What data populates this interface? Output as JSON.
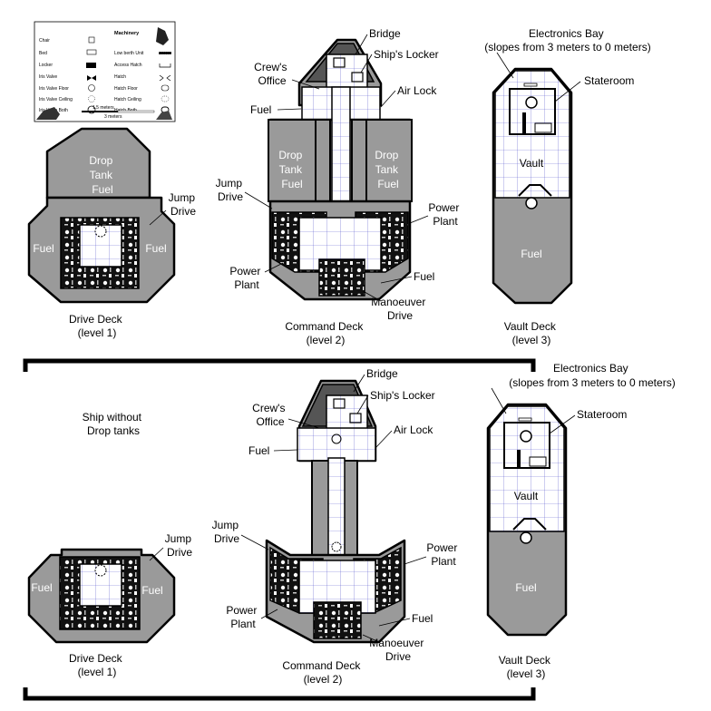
{
  "legend": {
    "left_items": [
      "Chair",
      "Bed",
      "Locker",
      "Iris Valve",
      "Iris Valve Floor",
      "Iris Valve Ceiling",
      "Iris Valve Both"
    ],
    "right_title": "Machinery",
    "right_items": [
      "Low berth Unit",
      "Access Hatch",
      "Hatch",
      "Hatch Floor",
      "Hatch Ceiling",
      "Hatch Both"
    ],
    "scale_top": "1.5 meters",
    "scale_bottom": "3 meters"
  },
  "top": {
    "drive_deck": {
      "drop_tank": [
        "Drop",
        "Tank",
        "Fuel"
      ],
      "fuel_left": "Fuel",
      "fuel_right": "Fuel",
      "jump_drive": [
        "Jump",
        "Drive"
      ],
      "caption": [
        "Drive Deck",
        "(level 1)"
      ]
    },
    "command_deck": {
      "bridge": "Bridge",
      "ships_locker": "Ship's Locker",
      "crews_office": [
        "Crew's",
        "Office"
      ],
      "air_lock": "Air Lock",
      "fuel_upper": "Fuel",
      "drop_tank_left": [
        "Drop",
        "Tank",
        "Fuel"
      ],
      "drop_tank_right": [
        "Drop",
        "Tank",
        "Fuel"
      ],
      "jump_drive": [
        "Jump",
        "Drive"
      ],
      "power_plant_right": [
        "Power",
        "Plant"
      ],
      "power_plant_left": [
        "Power",
        "Plant"
      ],
      "fuel_lower": "Fuel",
      "manoeuver_drive": [
        "Manoeuver",
        "Drive"
      ],
      "caption": [
        "Command Deck",
        "(level 2)"
      ]
    },
    "vault_deck": {
      "electronics_bay": [
        "Electronics Bay",
        "(slopes from 3 meters to 0 meters)"
      ],
      "stateroom": "Stateroom",
      "vault": "Vault",
      "fuel": "Fuel",
      "caption": [
        "Vault Deck",
        "(level 3)"
      ]
    }
  },
  "bottom": {
    "ship_note": [
      "Ship without",
      "Drop tanks"
    ],
    "drive_deck": {
      "fuel_left": "Fuel",
      "fuel_right": "Fuel",
      "jump_drive": [
        "Jump",
        "Drive"
      ],
      "caption": [
        "Drive Deck",
        "(level 1)"
      ]
    },
    "command_deck": {
      "bridge": "Bridge",
      "ships_locker": "Ship's Locker",
      "crews_office": [
        "Crew's",
        "Office"
      ],
      "air_lock": "Air Lock",
      "fuel_upper": "Fuel",
      "jump_drive": [
        "Jump",
        "Drive"
      ],
      "power_plant_right": [
        "Power",
        "Plant"
      ],
      "power_plant_left": [
        "Power",
        "Plant"
      ],
      "fuel_lower": "Fuel",
      "manoeuver_drive": [
        "Manoeuver",
        "Drive"
      ],
      "caption": [
        "Command Deck",
        "(level 2)"
      ]
    },
    "vault_deck": {
      "electronics_bay": [
        "Electronics Bay",
        "(slopes from 3 meters to 0 meters)"
      ],
      "stateroom": "Stateroom",
      "vault": "Vault",
      "fuel": "Fuel",
      "caption": [
        "Vault Deck",
        "(level 3)"
      ]
    }
  }
}
